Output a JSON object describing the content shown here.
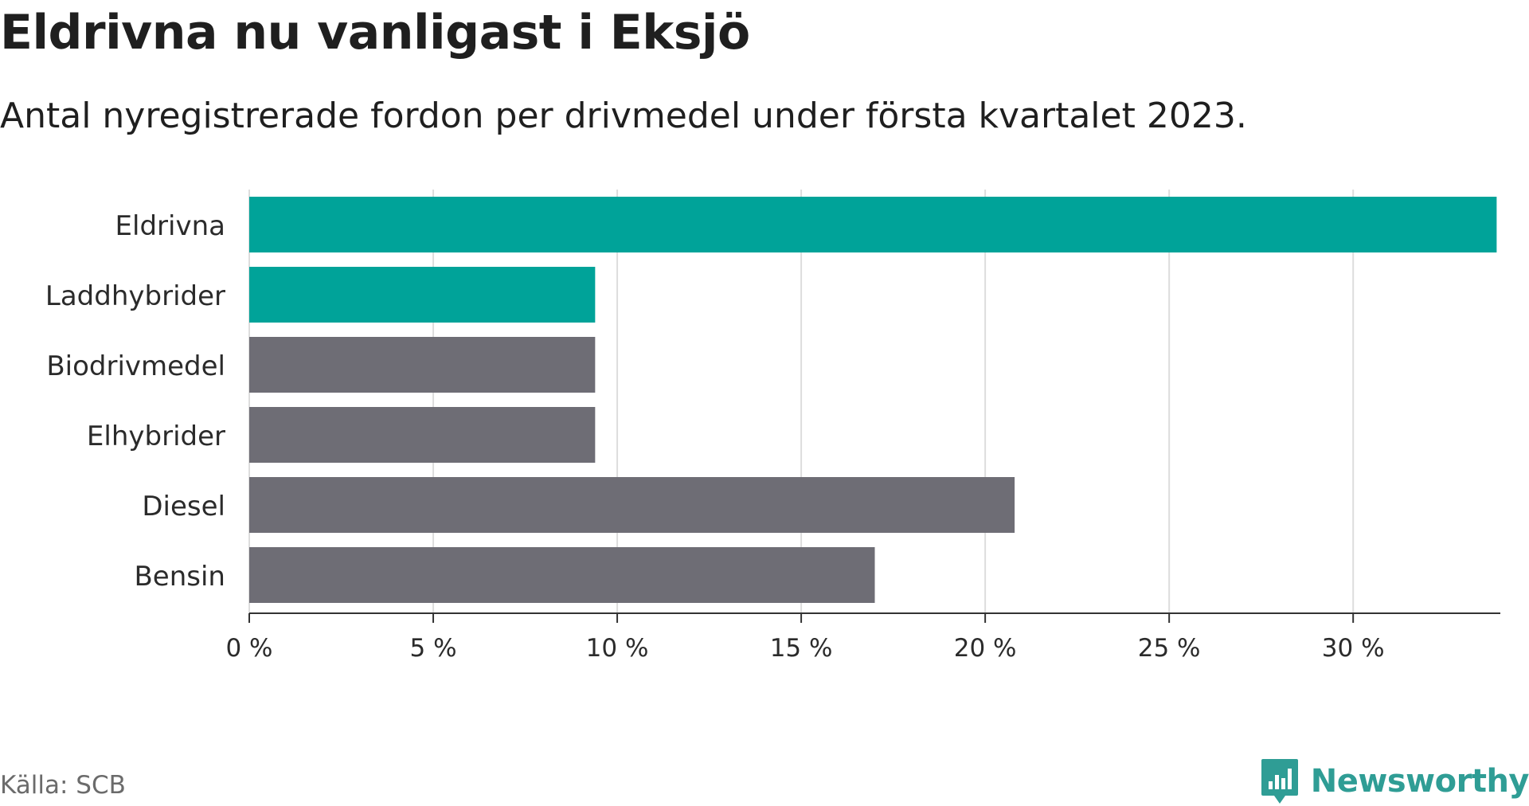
{
  "header": {
    "title": "Eldrivna nu vanligast i Eksjö",
    "subtitle": "Antal nyregistrerade fordon per drivmedel under första kvartalet 2023."
  },
  "footer": {
    "source": "Källa: SCB",
    "brand": "Newsworthy",
    "brand_icon": "newsworthy-logo-icon"
  },
  "colors": {
    "highlight": "#00A399",
    "default": "#6E6D75",
    "grid": "#DDDDDD",
    "axis": "#333333",
    "brand": "#2F9D95"
  },
  "chart_data": {
    "type": "bar",
    "orientation": "horizontal",
    "categories": [
      "Eldrivna",
      "Laddhybrider",
      "Biodrivmedel",
      "Elhybrider",
      "Diesel",
      "Bensin"
    ],
    "values": [
      33.9,
      9.4,
      9.4,
      9.4,
      20.8,
      17.0
    ],
    "highlight": [
      true,
      true,
      false,
      false,
      false,
      false
    ],
    "xlim": [
      0,
      34
    ],
    "xticks": [
      0,
      5,
      10,
      15,
      20,
      25,
      30
    ],
    "xtick_labels": [
      "0 %",
      "5 %",
      "10 %",
      "15 %",
      "20 %",
      "25 %",
      "30 %"
    ],
    "unit": "%",
    "grid": true,
    "legend": "none",
    "xlabel": "",
    "ylabel": ""
  }
}
